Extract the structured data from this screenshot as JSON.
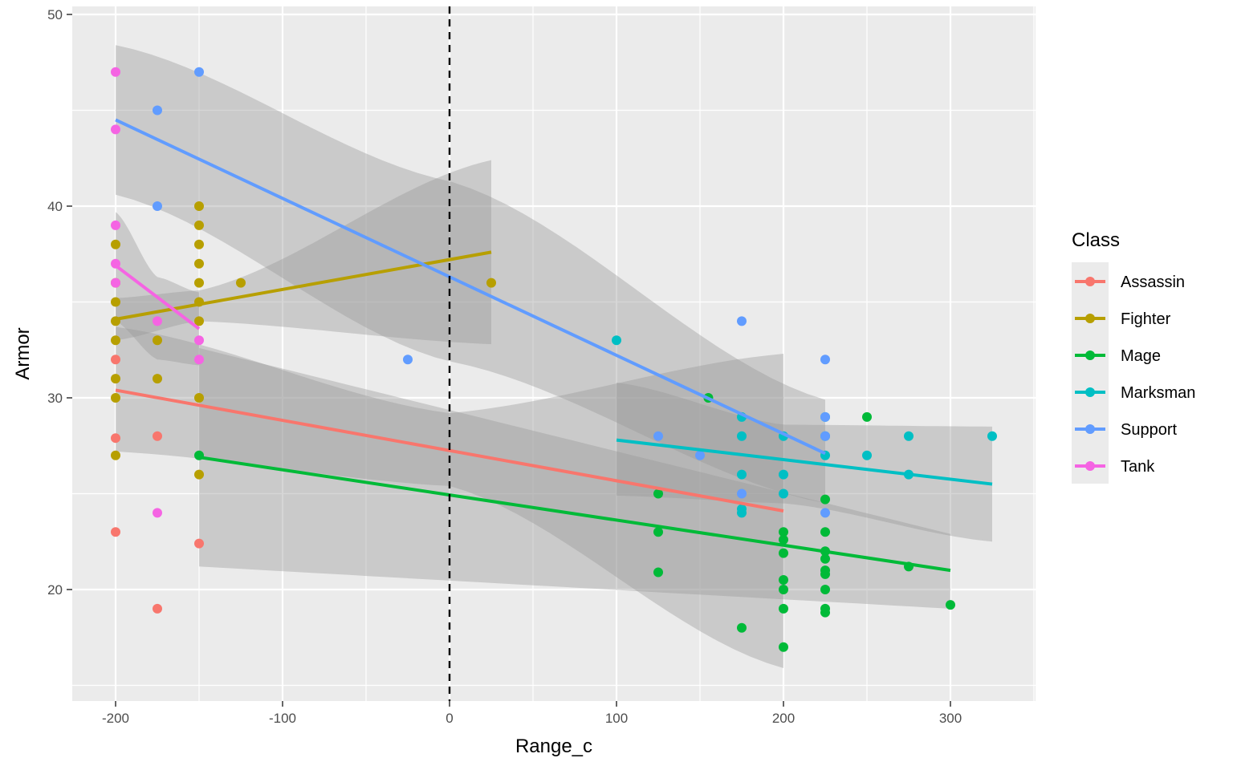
{
  "chart_data": {
    "type": "scatter",
    "title": "",
    "xlabel": "Range_c",
    "ylabel": "Armor",
    "xlim": [
      -225,
      350
    ],
    "ylim": [
      15,
      50
    ],
    "xticks": [
      -200,
      -100,
      0,
      100,
      200,
      300
    ],
    "xtick_labels": [
      "-200",
      "-100",
      "0",
      "100",
      "200",
      "300"
    ],
    "yticks": [
      20,
      30,
      40,
      50
    ],
    "ytick_labels": [
      "20",
      "30",
      "40",
      "50"
    ],
    "grid": true,
    "background": "#ebebeb",
    "vline": {
      "x": 0,
      "style": "dashed",
      "color": "#000000"
    },
    "legend": {
      "title": "Class",
      "position": "right"
    },
    "series": [
      {
        "name": "Assassin",
        "color": "#f8766d",
        "points": [
          [
            -200,
            32
          ],
          [
            -200,
            27.9
          ],
          [
            -200,
            23
          ],
          [
            -175,
            28
          ],
          [
            -175,
            19
          ],
          [
            -150,
            22.4
          ]
        ],
        "fit": {
          "x": [
            -200,
            200
          ],
          "y": [
            30.4,
            24.1
          ]
        },
        "band": {
          "x": [
            -200,
            0,
            200
          ],
          "upper": [
            33.7,
            29.2,
            32.3
          ],
          "lower": [
            27.2,
            25.4,
            15.9
          ]
        }
      },
      {
        "name": "Fighter",
        "color": "#b79f00",
        "points": [
          [
            -200,
            38
          ],
          [
            -200,
            36
          ],
          [
            -200,
            35
          ],
          [
            -200,
            34
          ],
          [
            -200,
            33
          ],
          [
            -200,
            31
          ],
          [
            -200,
            30
          ],
          [
            -200,
            27
          ],
          [
            -175,
            33
          ],
          [
            -175,
            31
          ],
          [
            -150,
            40
          ],
          [
            -150,
            39
          ],
          [
            -150,
            38
          ],
          [
            -150,
            37
          ],
          [
            -150,
            36
          ],
          [
            -150,
            35
          ],
          [
            -150,
            34
          ],
          [
            -150,
            30
          ],
          [
            -150,
            26
          ],
          [
            -125,
            36
          ],
          [
            25,
            36
          ]
        ],
        "fit": {
          "x": [
            -200,
            25
          ],
          "y": [
            34.1,
            37.6
          ]
        },
        "band": {
          "x": [
            -200,
            -150,
            25
          ],
          "upper": [
            35.2,
            35.6,
            42.4
          ],
          "lower": [
            33.0,
            34.0,
            32.8
          ]
        }
      },
      {
        "name": "Mage",
        "color": "#00ba38",
        "points": [
          [
            -150,
            27
          ],
          [
            125,
            25
          ],
          [
            125,
            23
          ],
          [
            125,
            20.9
          ],
          [
            155,
            30
          ],
          [
            175,
            18
          ],
          [
            200,
            23
          ],
          [
            200,
            22.6
          ],
          [
            200,
            21.9
          ],
          [
            200,
            20.5
          ],
          [
            200,
            20
          ],
          [
            200,
            19
          ],
          [
            200,
            17
          ],
          [
            225,
            24.7
          ],
          [
            225,
            23
          ],
          [
            225,
            22
          ],
          [
            225,
            21.6
          ],
          [
            225,
            21
          ],
          [
            225,
            20.8
          ],
          [
            225,
            20
          ],
          [
            225,
            19
          ],
          [
            225,
            18.8
          ],
          [
            250,
            29
          ],
          [
            275,
            21.2
          ],
          [
            300,
            19.2
          ]
        ],
        "fit": {
          "x": [
            -150,
            300
          ],
          "y": [
            26.9,
            21.0
          ]
        },
        "band": {
          "x": [
            -150,
            300
          ],
          "upper": [
            32.6,
            22.9
          ],
          "lower": [
            21.2,
            19.0
          ]
        }
      },
      {
        "name": "Marksman",
        "color": "#00bfc4",
        "points": [
          [
            100,
            33
          ],
          [
            175,
            29
          ],
          [
            175,
            28
          ],
          [
            175,
            26
          ],
          [
            175,
            24.2
          ],
          [
            175,
            24
          ],
          [
            200,
            28
          ],
          [
            200,
            26
          ],
          [
            200,
            25
          ],
          [
            225,
            29
          ],
          [
            225,
            28
          ],
          [
            225,
            27
          ],
          [
            250,
            27
          ],
          [
            275,
            28
          ],
          [
            275,
            26
          ],
          [
            325,
            28
          ]
        ],
        "fit": {
          "x": [
            100,
            325
          ],
          "y": [
            27.8,
            25.5
          ]
        },
        "band": {
          "x": [
            100,
            200,
            325
          ],
          "upper": [
            30.8,
            28.6,
            28.5
          ],
          "lower": [
            24.9,
            24.5,
            22.5
          ]
        }
      },
      {
        "name": "Support",
        "color": "#619cff",
        "points": [
          [
            -175,
            45
          ],
          [
            -175,
            40
          ],
          [
            -150,
            47
          ],
          [
            -25,
            32
          ],
          [
            125,
            28
          ],
          [
            150,
            27
          ],
          [
            175,
            34
          ],
          [
            175,
            25
          ],
          [
            225,
            32
          ],
          [
            225,
            29
          ],
          [
            225,
            28
          ],
          [
            225,
            24
          ]
        ],
        "fit": {
          "x": [
            -200,
            225
          ],
          "y": [
            44.5,
            27.1
          ]
        },
        "band": {
          "x": [
            -200,
            0,
            225
          ],
          "upper": [
            48.4,
            41.3,
            29.9
          ],
          "lower": [
            40.6,
            31.9,
            24.5
          ]
        }
      },
      {
        "name": "Tank",
        "color": "#f564e3",
        "points": [
          [
            -200,
            47
          ],
          [
            -200,
            44
          ],
          [
            -200,
            39
          ],
          [
            -200,
            37
          ],
          [
            -200,
            36
          ],
          [
            -175,
            34
          ],
          [
            -175,
            24
          ],
          [
            -150,
            33
          ],
          [
            -150,
            32
          ]
        ],
        "fit": {
          "x": [
            -200,
            -150
          ],
          "y": [
            36.9,
            33.6
          ]
        },
        "band": {
          "x": [
            -200,
            -175,
            -150
          ],
          "upper": [
            39.7,
            36.3,
            35.5
          ],
          "lower": [
            34.0,
            32.0,
            31.7
          ]
        }
      }
    ]
  }
}
